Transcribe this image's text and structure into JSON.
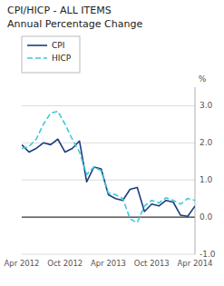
{
  "chart_data": {
    "type": "line",
    "title": "CPI/HICP  - ALL ITEMS",
    "subtitle": "Annual  Percentage Change",
    "y_label": "%",
    "categories": [
      "Apr 2012",
      null,
      null,
      null,
      null,
      null,
      "Oct 2012",
      null,
      null,
      null,
      null,
      null,
      "Apr 2013",
      null,
      null,
      null,
      null,
      null,
      "Oct 2013",
      null,
      null,
      null,
      null,
      null,
      "Apr 2014"
    ],
    "series": [
      {
        "name": "CPI",
        "color": "#1a3e7c",
        "line_style": "solid",
        "values": [
          1.95,
          1.75,
          1.85,
          2.0,
          1.95,
          2.1,
          1.75,
          1.85,
          2.05,
          0.95,
          1.35,
          1.3,
          0.6,
          0.5,
          0.45,
          0.75,
          0.8,
          0.15,
          0.35,
          0.3,
          0.45,
          0.4,
          0.05,
          0.02,
          0.3
        ]
      },
      {
        "name": "HICP",
        "color": "#3fc8d8",
        "line_style": "dashed",
        "values": [
          1.85,
          1.9,
          2.1,
          2.5,
          2.8,
          2.85,
          2.5,
          2.1,
          1.75,
          1.15,
          1.35,
          1.25,
          0.65,
          0.6,
          0.5,
          -0.05,
          -0.15,
          0.3,
          0.45,
          0.38,
          0.52,
          0.45,
          0.35,
          0.5,
          0.45
        ]
      }
    ],
    "ylim": [
      -1.0,
      3.5
    ],
    "yticks": [
      {
        "value": -1.0,
        "label": "-1.0"
      },
      {
        "value": 0.0,
        "label": "0.0"
      },
      {
        "value": 1.0,
        "label": "1.0"
      },
      {
        "value": 2.0,
        "label": "2.0"
      },
      {
        "value": 3.0,
        "label": "3.0"
      }
    ],
    "grid": true,
    "legend": "upper left"
  }
}
